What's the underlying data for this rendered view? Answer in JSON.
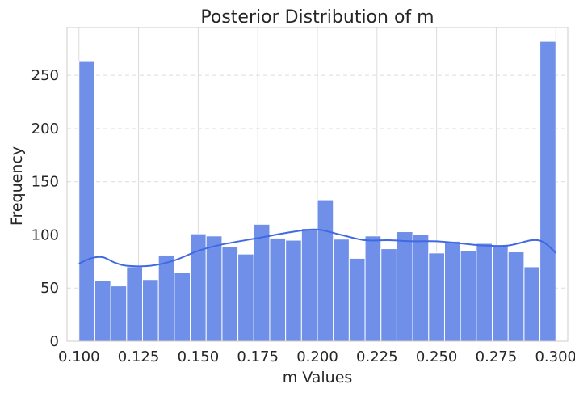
{
  "chart_data": {
    "type": "histogram",
    "title": "Posterior Distribution of m",
    "xlabel": "m Values",
    "ylabel": "Frequency",
    "xlim": [
      0.095,
      0.305
    ],
    "ylim": [
      0,
      295
    ],
    "xticks": [
      0.1,
      0.125,
      0.15,
      0.175,
      0.2,
      0.225,
      0.25,
      0.275,
      0.3
    ],
    "xtick_labels": [
      "0.100",
      "0.125",
      "0.150",
      "0.175",
      "0.200",
      "0.225",
      "0.250",
      "0.275",
      "0.300"
    ],
    "yticks": [
      0,
      50,
      100,
      150,
      200,
      250
    ],
    "ytick_labels": [
      "0",
      "50",
      "100",
      "150",
      "200",
      "250"
    ],
    "bin_start": 0.1,
    "bin_width": 0.006667,
    "counts": [
      263,
      57,
      52,
      70,
      58,
      81,
      65,
      101,
      99,
      89,
      82,
      110,
      97,
      95,
      106,
      133,
      96,
      78,
      99,
      87,
      103,
      100,
      83,
      94,
      85,
      92,
      90,
      84,
      70,
      282
    ],
    "kde": {
      "x": [
        0.1,
        0.105,
        0.11,
        0.115,
        0.12,
        0.13,
        0.14,
        0.15,
        0.16,
        0.175,
        0.19,
        0.2,
        0.21,
        0.22,
        0.23,
        0.24,
        0.25,
        0.26,
        0.27,
        0.28,
        0.29,
        0.295,
        0.3
      ],
      "y": [
        73,
        78,
        79,
        74,
        71,
        71,
        76,
        85,
        91,
        97,
        103,
        105,
        100,
        95,
        95,
        94,
        94,
        92,
        90,
        90,
        95,
        93,
        83
      ]
    },
    "colors": {
      "bar": "#6f8fe8",
      "bar_edge": "#ffffff",
      "kde": "#4169e1",
      "grid": "#dcdcdc",
      "axes_edge": "#cccccc"
    },
    "grid": true
  }
}
